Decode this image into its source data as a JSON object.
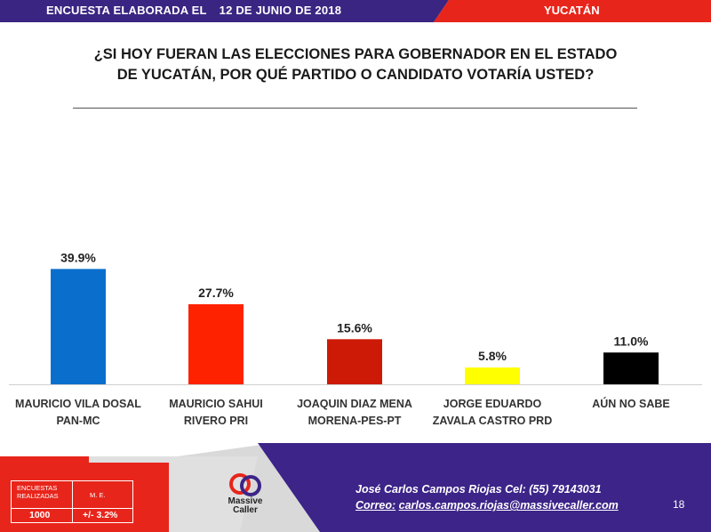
{
  "header": {
    "left_label": "ENCUESTA ELABORADA EL",
    "date": "12 DE JUNIO DE 2018",
    "state": "YUCATÁN"
  },
  "question": {
    "line1": "¿SI HOY FUERAN LAS ELECCIONES PARA GOBERNADOR EN EL ESTADO",
    "line2": "DE YUCATÁN, POR QUÉ PARTIDO O CANDIDATO VOTARÍA USTED?"
  },
  "chart_data": {
    "type": "bar",
    "title": "¿SI HOY FUERAN LAS ELECCIONES PARA GOBERNADOR EN EL ESTADO DE YUCATÁN, POR QUÉ PARTIDO O CANDIDATO VOTARÍA USTED?",
    "categories": [
      [
        "MAURICIO VILA DOSAL",
        "PAN-MC"
      ],
      [
        "MAURICIO SAHUI",
        "RIVERO PRI"
      ],
      [
        "JOAQUIN DIAZ MENA",
        "MORENA-PES-PT"
      ],
      [
        "JORGE EDUARDO",
        "ZAVALA CASTRO PRD"
      ],
      [
        "AÚN NO SABE"
      ]
    ],
    "values": [
      39.9,
      27.7,
      15.6,
      5.8,
      11.0
    ],
    "labels": [
      "39.9%",
      "27.7%",
      "15.6%",
      "5.8%",
      "11.0%"
    ],
    "colors": [
      "#0a6fcc",
      "#ff2200",
      "#cc1a06",
      "#ffff00",
      "#000000"
    ],
    "unit": "%",
    "ylim": [
      0,
      40
    ],
    "xlabel": "",
    "ylabel": ""
  },
  "footer": {
    "table": {
      "col1_header": "ENCUESTAS REALIZADAS",
      "col2_header": "M. E.",
      "col1_value": "1000",
      "col2_value": "+/- 3.2%"
    },
    "logo_line1": "Massive",
    "logo_line2": "Caller",
    "contact_line1": "José Carlos Campos Riojas Cel: (55) 79143031",
    "contact_label2": "Correo:",
    "contact_email": "carlos.campos.riojas@massivecaller.com",
    "page_number": "18"
  },
  "colors": {
    "header_purple": "#3a2582",
    "header_red": "#e8251b",
    "footer_purple": "#3c2488",
    "footer_red": "#e8251b",
    "footer_gray": "#d9d9d9"
  }
}
